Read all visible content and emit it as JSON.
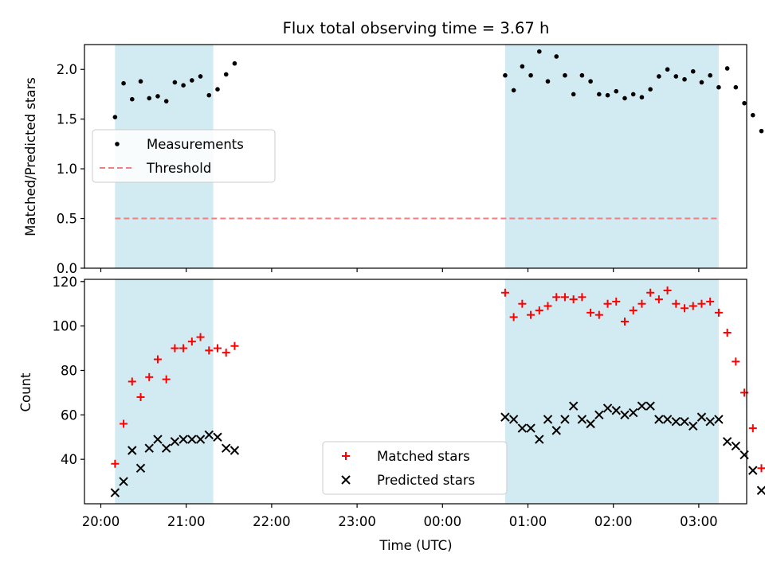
{
  "chart_data": [
    {
      "type": "scatter",
      "title": "Flux total observing time = 3.67 h",
      "ylabel": "Matched/Predicted stars",
      "ylim": [
        0,
        2.25
      ],
      "yticks": [
        "0.0",
        "0.5",
        "1.0",
        "1.5",
        "2.0"
      ],
      "shaded_intervals": [
        [
          "20:10",
          "21:19"
        ],
        [
          "00:44",
          "03:14"
        ]
      ],
      "threshold": {
        "name": "Threshold",
        "value": 0.5,
        "x_start": "20:10",
        "x_end": "03:14",
        "color": "#f08080"
      },
      "series": [
        {
          "name": "Measurements",
          "color": "#000000",
          "marker": "dot",
          "points": [
            [
              "20:10",
              1.52
            ],
            [
              "20:16",
              1.86
            ],
            [
              "20:22",
              1.7
            ],
            [
              "20:28",
              1.88
            ],
            [
              "20:34",
              1.71
            ],
            [
              "20:40",
              1.73
            ],
            [
              "20:46",
              1.68
            ],
            [
              "20:52",
              1.87
            ],
            [
              "20:58",
              1.84
            ],
            [
              "21:04",
              1.89
            ],
            [
              "21:10",
              1.93
            ],
            [
              "21:16",
              1.74
            ],
            [
              "21:22",
              1.8
            ],
            [
              "21:28",
              1.95
            ],
            [
              "21:34",
              2.06
            ],
            [
              "00:44",
              1.94
            ],
            [
              "00:50",
              1.79
            ],
            [
              "00:56",
              2.03
            ],
            [
              "01:02",
              1.94
            ],
            [
              "01:08",
              2.18
            ],
            [
              "01:14",
              1.88
            ],
            [
              "01:20",
              2.13
            ],
            [
              "01:26",
              1.94
            ],
            [
              "01:32",
              1.75
            ],
            [
              "01:38",
              1.94
            ],
            [
              "01:44",
              1.88
            ],
            [
              "01:50",
              1.75
            ],
            [
              "01:56",
              1.74
            ],
            [
              "02:02",
              1.78
            ],
            [
              "02:08",
              1.71
            ],
            [
              "02:14",
              1.75
            ],
            [
              "02:20",
              1.72
            ],
            [
              "02:26",
              1.8
            ],
            [
              "02:32",
              1.93
            ],
            [
              "02:38",
              2.0
            ],
            [
              "02:44",
              1.93
            ],
            [
              "02:50",
              1.9
            ],
            [
              "02:56",
              1.98
            ],
            [
              "03:02",
              1.87
            ],
            [
              "03:08",
              1.94
            ],
            [
              "03:14",
              1.82
            ],
            [
              "03:20",
              2.01
            ],
            [
              "03:26",
              1.82
            ],
            [
              "03:32",
              1.66
            ],
            [
              "03:38",
              1.54
            ],
            [
              "03:44",
              1.38
            ]
          ]
        }
      ],
      "legend": {
        "placement": "left",
        "entries": [
          "Measurements",
          "Threshold"
        ]
      }
    },
    {
      "type": "scatter",
      "xlabel": "Time (UTC)",
      "ylabel": "Count",
      "ylim": [
        20,
        121
      ],
      "yticks": [
        "40",
        "60",
        "80",
        "100",
        "120"
      ],
      "xticks": [
        "20:00",
        "21:00",
        "22:00",
        "23:00",
        "00:00",
        "01:00",
        "02:00",
        "03:00"
      ],
      "shaded_intervals": [
        [
          "20:10",
          "21:19"
        ],
        [
          "00:44",
          "03:14"
        ]
      ],
      "series": [
        {
          "name": "Matched stars",
          "color": "#ff0000",
          "marker": "plus",
          "points": [
            [
              "20:10",
              38
            ],
            [
              "20:16",
              56
            ],
            [
              "20:22",
              75
            ],
            [
              "20:28",
              68
            ],
            [
              "20:34",
              77
            ],
            [
              "20:40",
              85
            ],
            [
              "20:46",
              76
            ],
            [
              "20:52",
              90
            ],
            [
              "20:58",
              90
            ],
            [
              "21:04",
              93
            ],
            [
              "21:10",
              95
            ],
            [
              "21:16",
              89
            ],
            [
              "21:22",
              90
            ],
            [
              "21:28",
              88
            ],
            [
              "21:34",
              91
            ],
            [
              "00:44",
              115
            ],
            [
              "00:50",
              104
            ],
            [
              "00:56",
              110
            ],
            [
              "01:02",
              105
            ],
            [
              "01:08",
              107
            ],
            [
              "01:14",
              109
            ],
            [
              "01:20",
              113
            ],
            [
              "01:26",
              113
            ],
            [
              "01:32",
              112
            ],
            [
              "01:38",
              113
            ],
            [
              "01:44",
              106
            ],
            [
              "01:50",
              105
            ],
            [
              "01:56",
              110
            ],
            [
              "02:02",
              111
            ],
            [
              "02:08",
              102
            ],
            [
              "02:14",
              107
            ],
            [
              "02:20",
              110
            ],
            [
              "02:26",
              115
            ],
            [
              "02:32",
              112
            ],
            [
              "02:38",
              116
            ],
            [
              "02:44",
              110
            ],
            [
              "02:50",
              108
            ],
            [
              "02:56",
              109
            ],
            [
              "03:02",
              110
            ],
            [
              "03:08",
              111
            ],
            [
              "03:14",
              106
            ],
            [
              "03:20",
              97
            ],
            [
              "03:26",
              84
            ],
            [
              "03:32",
              70
            ],
            [
              "03:38",
              54
            ],
            [
              "03:44",
              36
            ]
          ]
        },
        {
          "name": "Predicted stars",
          "color": "#000000",
          "marker": "x",
          "points": [
            [
              "20:10",
              25
            ],
            [
              "20:16",
              30
            ],
            [
              "20:22",
              44
            ],
            [
              "20:28",
              36
            ],
            [
              "20:34",
              45
            ],
            [
              "20:40",
              49
            ],
            [
              "20:46",
              45
            ],
            [
              "20:52",
              48
            ],
            [
              "20:58",
              49
            ],
            [
              "21:04",
              49
            ],
            [
              "21:10",
              49
            ],
            [
              "21:16",
              51
            ],
            [
              "21:22",
              50
            ],
            [
              "21:28",
              45
            ],
            [
              "21:34",
              44
            ],
            [
              "00:44",
              59
            ],
            [
              "00:50",
              58
            ],
            [
              "00:56",
              54
            ],
            [
              "01:02",
              54
            ],
            [
              "01:08",
              49
            ],
            [
              "01:14",
              58
            ],
            [
              "01:20",
              53
            ],
            [
              "01:26",
              58
            ],
            [
              "01:32",
              64
            ],
            [
              "01:38",
              58
            ],
            [
              "01:44",
              56
            ],
            [
              "01:50",
              60
            ],
            [
              "01:56",
              63
            ],
            [
              "02:02",
              62
            ],
            [
              "02:08",
              60
            ],
            [
              "02:14",
              61
            ],
            [
              "02:20",
              64
            ],
            [
              "02:26",
              64
            ],
            [
              "02:32",
              58
            ],
            [
              "02:38",
              58
            ],
            [
              "02:44",
              57
            ],
            [
              "02:50",
              57
            ],
            [
              "02:56",
              55
            ],
            [
              "03:02",
              59
            ],
            [
              "03:08",
              57
            ],
            [
              "03:14",
              58
            ],
            [
              "03:20",
              48
            ],
            [
              "03:26",
              46
            ],
            [
              "03:32",
              42
            ],
            [
              "03:38",
              35
            ],
            [
              "03:44",
              26
            ]
          ]
        }
      ],
      "legend": {
        "placement": "bottom-center",
        "entries": [
          "Matched stars",
          "Predicted stars"
        ]
      }
    }
  ],
  "colors": {
    "shade": "#add8e6",
    "threshold": "#f08080",
    "matched": "#ff0000",
    "predicted": "#000000"
  }
}
